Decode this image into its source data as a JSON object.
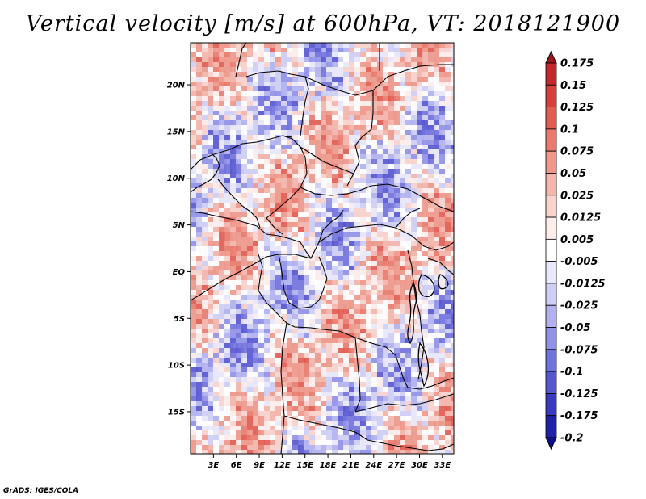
{
  "title": "Vertical velocity [m/s] at 600hPa, VT: 2018121900",
  "footer": "GrADS: IGES/COLA",
  "map": {
    "field": "Vertical velocity",
    "units": "m/s",
    "level": "600hPa",
    "valid_time": "2018121900",
    "lat_ticks": [
      {
        "label": "20N",
        "value": 20
      },
      {
        "label": "15N",
        "value": 15
      },
      {
        "label": "10N",
        "value": 10
      },
      {
        "label": "5N",
        "value": 5
      },
      {
        "label": "EQ",
        "value": 0
      },
      {
        "label": "5S",
        "value": -5
      },
      {
        "label": "10S",
        "value": -10
      },
      {
        "label": "15S",
        "value": -15
      }
    ],
    "lon_ticks": [
      {
        "label": "3E",
        "value": 3
      },
      {
        "label": "6E",
        "value": 6
      },
      {
        "label": "9E",
        "value": 9
      },
      {
        "label": "12E",
        "value": 12
      },
      {
        "label": "15E",
        "value": 15
      },
      {
        "label": "18E",
        "value": 18
      },
      {
        "label": "21E",
        "value": 21
      },
      {
        "label": "24E",
        "value": 24
      },
      {
        "label": "27E",
        "value": 27
      },
      {
        "label": "30E",
        "value": 30
      },
      {
        "label": "33E",
        "value": 33
      }
    ],
    "lon_range": [
      0,
      34.5
    ],
    "lat_range": [
      -19.5,
      24.5
    ]
  },
  "colorbar": {
    "labels": [
      "0.175",
      "0.15",
      "0.125",
      "0.1",
      "0.075",
      "0.05",
      "0.025",
      "0.0125",
      "0.005",
      "-0.005",
      "-0.0125",
      "-0.025",
      "-0.05",
      "-0.075",
      "-0.1",
      "-0.125",
      "-0.175",
      "-0.2"
    ],
    "colors": [
      "#a1131b",
      "#c3262b",
      "#d7403a",
      "#e35c50",
      "#ea7a6b",
      "#f0988a",
      "#f5b5aa",
      "#f9d3cc",
      "#fdeeea",
      "#ffffff",
      "#e9e9fb",
      "#cfcff6",
      "#b1b1f0",
      "#9191e8",
      "#7272dd",
      "#5656d0",
      "#3a3ac0",
      "#2020a8",
      "#0e0e8c"
    ]
  }
}
